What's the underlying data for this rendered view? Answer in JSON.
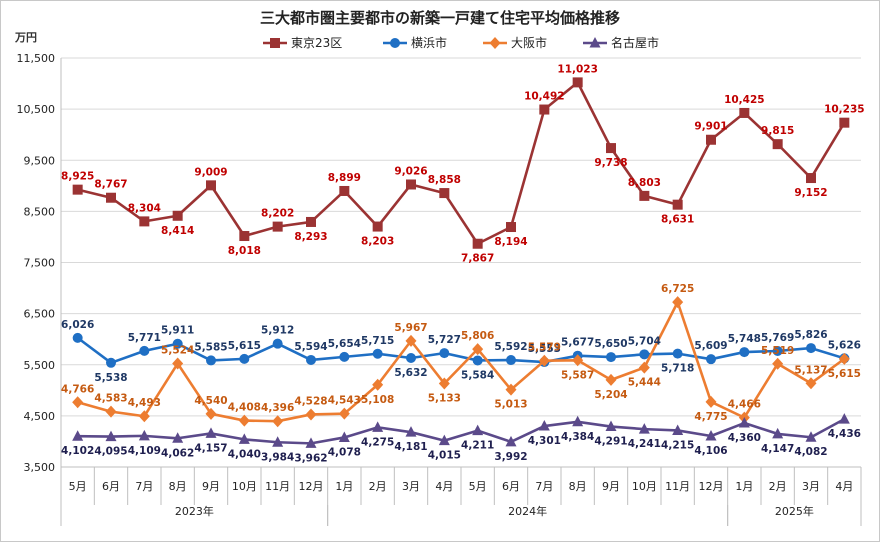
{
  "chart_data": {
    "type": "line",
    "title": "三大都市圏主要都市の新築一戸建て住宅平均価格推移",
    "ylabel": "万円",
    "xlabel": "",
    "ylim": [
      3500,
      11500
    ],
    "yticks": [
      "3,500",
      "4,500",
      "5,500",
      "6,500",
      "7,500",
      "8,500",
      "9,500",
      "10,500",
      "11,500"
    ],
    "grid": true,
    "legend_position": "top",
    "categories": [
      "5月",
      "6月",
      "7月",
      "8月",
      "9月",
      "10月",
      "11月",
      "12月",
      "1月",
      "2月",
      "3月",
      "4月",
      "5月",
      "6月",
      "7月",
      "8月",
      "9月",
      "10月",
      "11月",
      "12月",
      "1月",
      "2月",
      "3月",
      "4月"
    ],
    "years": [
      {
        "label": "2023年",
        "start": 0,
        "end": 7
      },
      {
        "label": "2024年",
        "start": 8,
        "end": 19
      },
      {
        "label": "2025年",
        "start": 20,
        "end": 23
      }
    ],
    "series": [
      {
        "name": "東京23区",
        "color": "#9b3333",
        "marker": "square",
        "label_color": "#c00000",
        "values": [
          8925,
          8767,
          8304,
          8414,
          9009,
          8018,
          8202,
          8293,
          8899,
          8203,
          9026,
          8858,
          7867,
          8194,
          10492,
          11023,
          9738,
          8803,
          8631,
          9901,
          10425,
          9815,
          9152,
          10235
        ],
        "labels": [
          "8,925",
          "8,767",
          "8,304",
          "8,414",
          "9,009",
          "8,018",
          "8,202",
          "8,293",
          "8,899",
          "8,203",
          "9,026",
          "8,858",
          "7,867",
          "8,194",
          "10,492",
          "11,023",
          "9,738",
          "8,803",
          "8,631",
          "9,901",
          "10,425",
          "9,815",
          "9,152",
          "10,235"
        ]
      },
      {
        "name": "横浜市",
        "color": "#1f6fc4",
        "marker": "circle",
        "label_color": "#1f3864",
        "values": [
          6026,
          5538,
          5771,
          5911,
          5585,
          5615,
          5912,
          5594,
          5654,
          5715,
          5632,
          5727,
          5584,
          5592,
          5553,
          5677,
          5650,
          5704,
          5718,
          5609,
          5748,
          5769,
          5826,
          5626
        ],
        "labels": [
          "6,026",
          "5,538",
          "5,771",
          "5,911",
          "5,585",
          "5,615",
          "5,912",
          "5,594",
          "5,654",
          "5,715",
          "5,632",
          "5,727",
          "5,584",
          "5,592",
          "5,553",
          "5,677",
          "5,650",
          "5,704",
          "5,718",
          "5,609",
          "5,748",
          "5,769",
          "5,826",
          "5,626"
        ]
      },
      {
        "name": "大阪市",
        "color": "#ed7d31",
        "marker": "diamond",
        "label_color": "#c55a11",
        "values": [
          4766,
          4583,
          4493,
          5524,
          4540,
          4408,
          4396,
          4528,
          4543,
          5108,
          5967,
          5133,
          5806,
          5013,
          5579,
          5587,
          5204,
          5444,
          6725,
          4775,
          4466,
          5519,
          5137,
          5615
        ],
        "labels": [
          "4,766",
          "4,583",
          "4,493",
          "5,524",
          "4,540",
          "4,408",
          "4,396",
          "4,528",
          "4,543",
          "5,108",
          "5,967",
          "5,133",
          "5,806",
          "5,013",
          "5,579",
          "5,587",
          "5,204",
          "5,444",
          "6,725",
          "4,775",
          "4,466",
          "5,519",
          "5,137",
          "5,615"
        ]
      },
      {
        "name": "名古屋市",
        "color": "#5b4a8a",
        "marker": "triangle",
        "label_color": "#1f1f4f",
        "values": [
          4102,
          4095,
          4109,
          4062,
          4157,
          4040,
          3984,
          3962,
          4078,
          4275,
          4181,
          4015,
          4211,
          3992,
          4301,
          4384,
          4291,
          4241,
          4215,
          4106,
          4360,
          4147,
          4082,
          4436
        ],
        "labels": [
          "4,102",
          "4,095",
          "4,109",
          "4,062",
          "4,157",
          "4,040",
          "3,984",
          "3,962",
          "4,078",
          "4,275",
          "4,181",
          "4,015",
          "4,211",
          "3,992",
          "4,301",
          "4,384",
          "4,291",
          "4,241",
          "4,215",
          "4,106",
          "4,360",
          "4,147",
          "4,082",
          "4,436"
        ]
      }
    ]
  }
}
